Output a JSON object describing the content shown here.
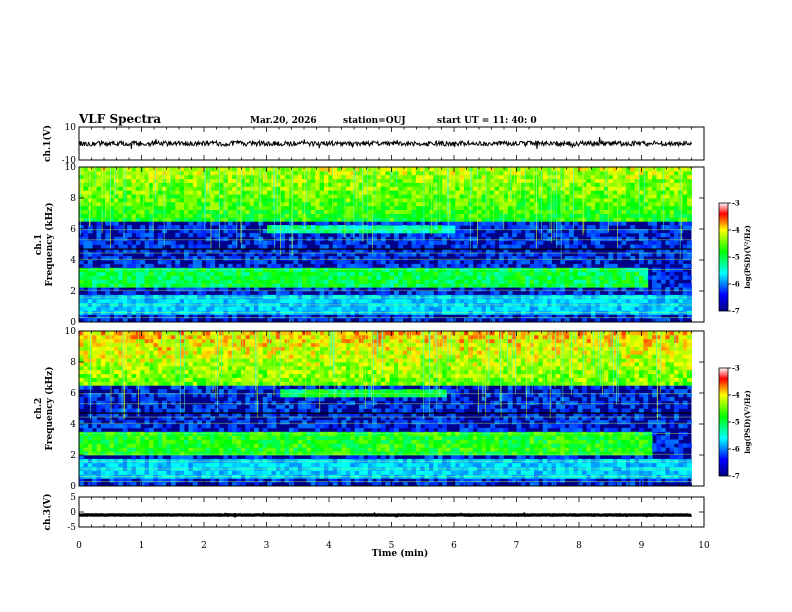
{
  "header": {
    "title": "VLF Spectra",
    "date": "Mar.20, 2026",
    "station": "station=OUJ",
    "start": "start  UT =  11: 40: 0"
  },
  "colors": {
    "spectrogram_background": "#00008b",
    "trace": "#000000"
  },
  "chart_data": [
    {
      "type": "line",
      "name": "ch1-waveform",
      "ylabel": "ch.1(V)",
      "ylim": [
        -10,
        10
      ],
      "yticks": [
        10,
        -10
      ],
      "xlim": [
        0,
        10
      ],
      "x": [
        0,
        9.8
      ],
      "y": [
        0,
        0
      ]
    },
    {
      "type": "heatmap",
      "name": "ch1-spectrogram",
      "ylabel": "ch.1\nFrequency (kHz)",
      "ylim": [
        0,
        10
      ],
      "yticks": [
        0,
        2,
        4,
        6,
        8,
        10
      ],
      "xlim": [
        0,
        10
      ],
      "data_end_min": 9.8,
      "colorbar": {
        "label": "log(PSD)(V²/Hz)",
        "range": [
          -7,
          -3
        ],
        "ticks": [
          -3,
          -4,
          -5,
          -6,
          -7
        ]
      },
      "features": [
        {
          "band_khz": [
            2.2,
            3.4
          ],
          "min": [
            0,
            9.1
          ],
          "level": -5.0
        },
        {
          "band_khz": [
            6.5,
            10
          ],
          "min": [
            0,
            9.8
          ],
          "level": -4.8
        },
        {
          "band_khz": [
            5.8,
            6.2
          ],
          "min": [
            3.0,
            6.0
          ],
          "level": -5.3
        }
      ]
    },
    {
      "type": "heatmap",
      "name": "ch2-spectrogram",
      "ylabel": "ch.2\nFrequency (kHz)",
      "ylim": [
        0,
        10
      ],
      "yticks": [
        0,
        2,
        4,
        6,
        8,
        10
      ],
      "xlim": [
        0,
        10
      ],
      "data_end_min": 9.8,
      "colorbar": {
        "label": "log(PSD)(V²/Hz)",
        "range": [
          -7,
          -3
        ],
        "ticks": [
          -3,
          -4,
          -5,
          -6,
          -7
        ]
      },
      "features": [
        {
          "band_khz": [
            2.0,
            3.6
          ],
          "min": [
            0,
            9.2
          ],
          "level": -4.8
        },
        {
          "band_khz": [
            6.5,
            10
          ],
          "min": [
            0,
            9.8
          ],
          "level": -4.5
        },
        {
          "band_khz": [
            5.8,
            6.3
          ],
          "min": [
            3.2,
            5.9
          ],
          "level": -5.0
        }
      ]
    },
    {
      "type": "line",
      "name": "ch3-waveform",
      "ylabel": "ch.3(V)",
      "ylim": [
        -5,
        5
      ],
      "yticks": [
        5,
        0,
        -5
      ],
      "xlim": [
        0,
        10
      ],
      "xlabel": "Time (min)",
      "xticks": [
        0,
        1,
        2,
        3,
        4,
        5,
        6,
        7,
        8,
        9,
        10
      ],
      "x": [
        0,
        9.8
      ],
      "y": [
        -1,
        -1
      ]
    }
  ]
}
